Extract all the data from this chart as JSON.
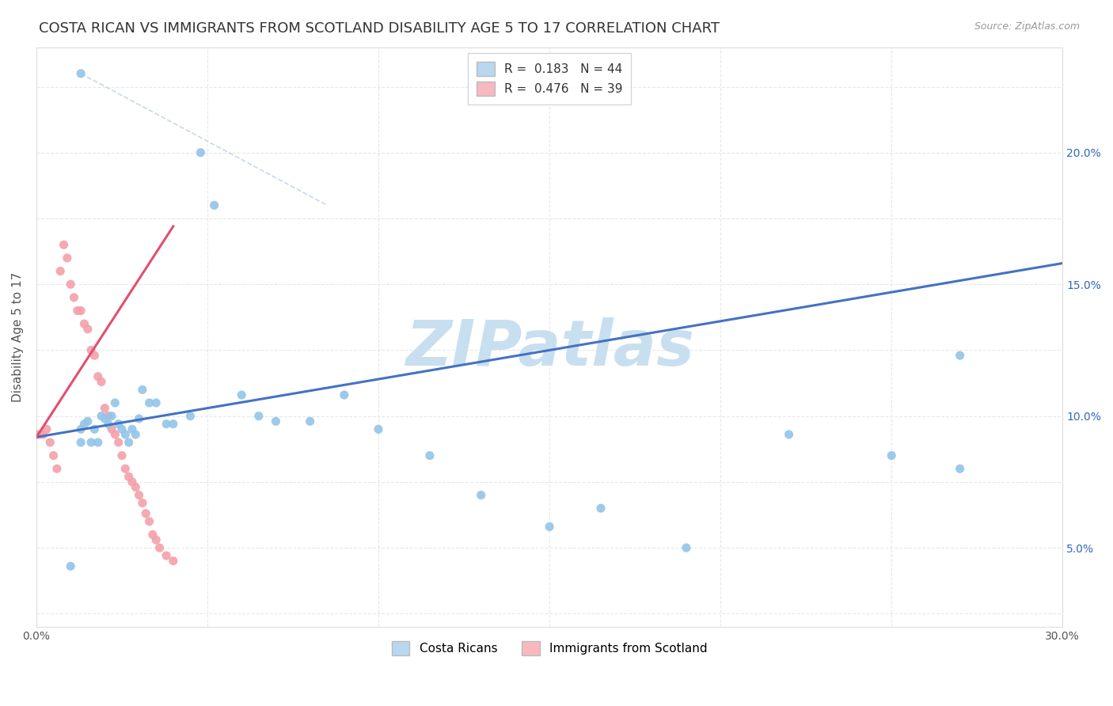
{
  "title": "COSTA RICAN VS IMMIGRANTS FROM SCOTLAND DISABILITY AGE 5 TO 17 CORRELATION CHART",
  "source": "Source: ZipAtlas.com",
  "ylabel": "Disability Age 5 to 17",
  "xlim": [
    0.0,
    0.3
  ],
  "ylim": [
    -0.005,
    0.215
  ],
  "watermark": "ZIPatlas",
  "scatter_color_blue": "#92c5e8",
  "scatter_color_pink": "#f4a0aa",
  "line_color_blue": "#4472c4",
  "line_color_pink": "#e05070",
  "line_color_dashed": "#c8d8ec",
  "legend_box_blue": "#b8d8f0",
  "legend_box_pink": "#f8b8c0",
  "grid_color": "#e8e8e8",
  "watermark_color": "#c8dff0",
  "title_fontsize": 13,
  "axis_fontsize": 11,
  "tick_fontsize": 10,
  "blue_line_x": [
    0.0,
    0.3
  ],
  "blue_line_y": [
    0.067,
    0.133
  ],
  "pink_line_x": [
    0.0,
    0.04
  ],
  "pink_line_y": [
    0.067,
    0.147
  ],
  "dashed_line_x": [
    0.013,
    0.085
  ],
  "dashed_line_y": [
    0.205,
    0.155
  ],
  "blue_x": [
    0.013,
    0.013,
    0.013,
    0.014,
    0.015,
    0.016,
    0.017,
    0.018,
    0.019,
    0.02,
    0.021,
    0.022,
    0.023,
    0.024,
    0.025,
    0.026,
    0.027,
    0.028,
    0.029,
    0.03,
    0.031,
    0.033,
    0.035,
    0.038,
    0.04,
    0.045,
    0.048,
    0.052,
    0.06,
    0.065,
    0.07,
    0.08,
    0.09,
    0.1,
    0.115,
    0.13,
    0.15,
    0.165,
    0.19,
    0.22,
    0.25,
    0.27,
    0.27,
    0.01
  ],
  "blue_y": [
    0.205,
    0.065,
    0.07,
    0.072,
    0.073,
    0.065,
    0.07,
    0.065,
    0.075,
    0.074,
    0.072,
    0.075,
    0.08,
    0.072,
    0.07,
    0.068,
    0.065,
    0.07,
    0.068,
    0.074,
    0.085,
    0.08,
    0.08,
    0.072,
    0.072,
    0.075,
    0.175,
    0.155,
    0.083,
    0.075,
    0.073,
    0.073,
    0.083,
    0.07,
    0.06,
    0.045,
    0.033,
    0.04,
    0.025,
    0.068,
    0.06,
    0.055,
    0.098,
    0.018
  ],
  "pink_x": [
    0.0,
    0.001,
    0.002,
    0.003,
    0.004,
    0.005,
    0.006,
    0.007,
    0.008,
    0.009,
    0.01,
    0.011,
    0.012,
    0.013,
    0.014,
    0.015,
    0.016,
    0.017,
    0.018,
    0.019,
    0.02,
    0.021,
    0.022,
    0.023,
    0.024,
    0.025,
    0.026,
    0.027,
    0.028,
    0.029,
    0.03,
    0.031,
    0.032,
    0.033,
    0.034,
    0.035,
    0.036,
    0.038,
    0.04
  ],
  "pink_y": [
    0.068,
    0.068,
    0.068,
    0.07,
    0.065,
    0.06,
    0.055,
    0.13,
    0.14,
    0.135,
    0.125,
    0.12,
    0.115,
    0.115,
    0.11,
    0.108,
    0.1,
    0.098,
    0.09,
    0.088,
    0.078,
    0.075,
    0.07,
    0.068,
    0.065,
    0.06,
    0.055,
    0.052,
    0.05,
    0.048,
    0.045,
    0.042,
    0.038,
    0.035,
    0.03,
    0.028,
    0.025,
    0.022,
    0.02
  ]
}
